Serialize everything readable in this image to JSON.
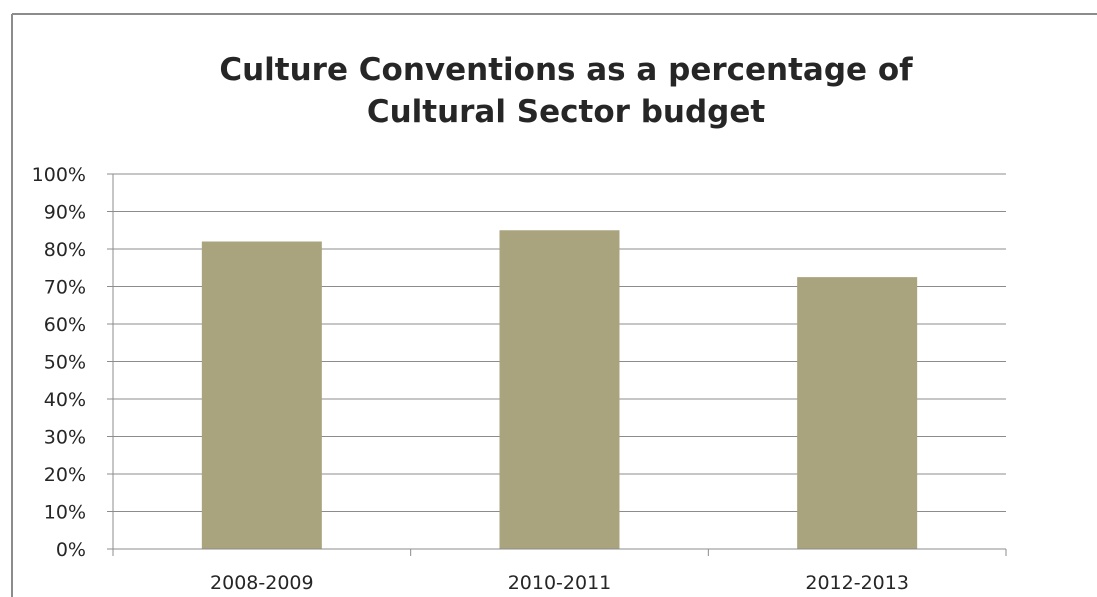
{
  "chart_data": {
    "type": "bar",
    "title_lines": [
      "Culture Conventions as a percentage of",
      "Cultural Sector budget"
    ],
    "categories": [
      "2008-2009",
      "2010-2011",
      "2012-2013"
    ],
    "values": [
      82,
      85,
      72.5
    ],
    "ylim": [
      0,
      100
    ],
    "y_ticks": [
      "0%",
      "10%",
      "20%",
      "30%",
      "40%",
      "50%",
      "60%",
      "70%",
      "80%",
      "90%",
      "100%"
    ],
    "grid": true,
    "legend": "none",
    "bar_color": "#a9a47d"
  }
}
